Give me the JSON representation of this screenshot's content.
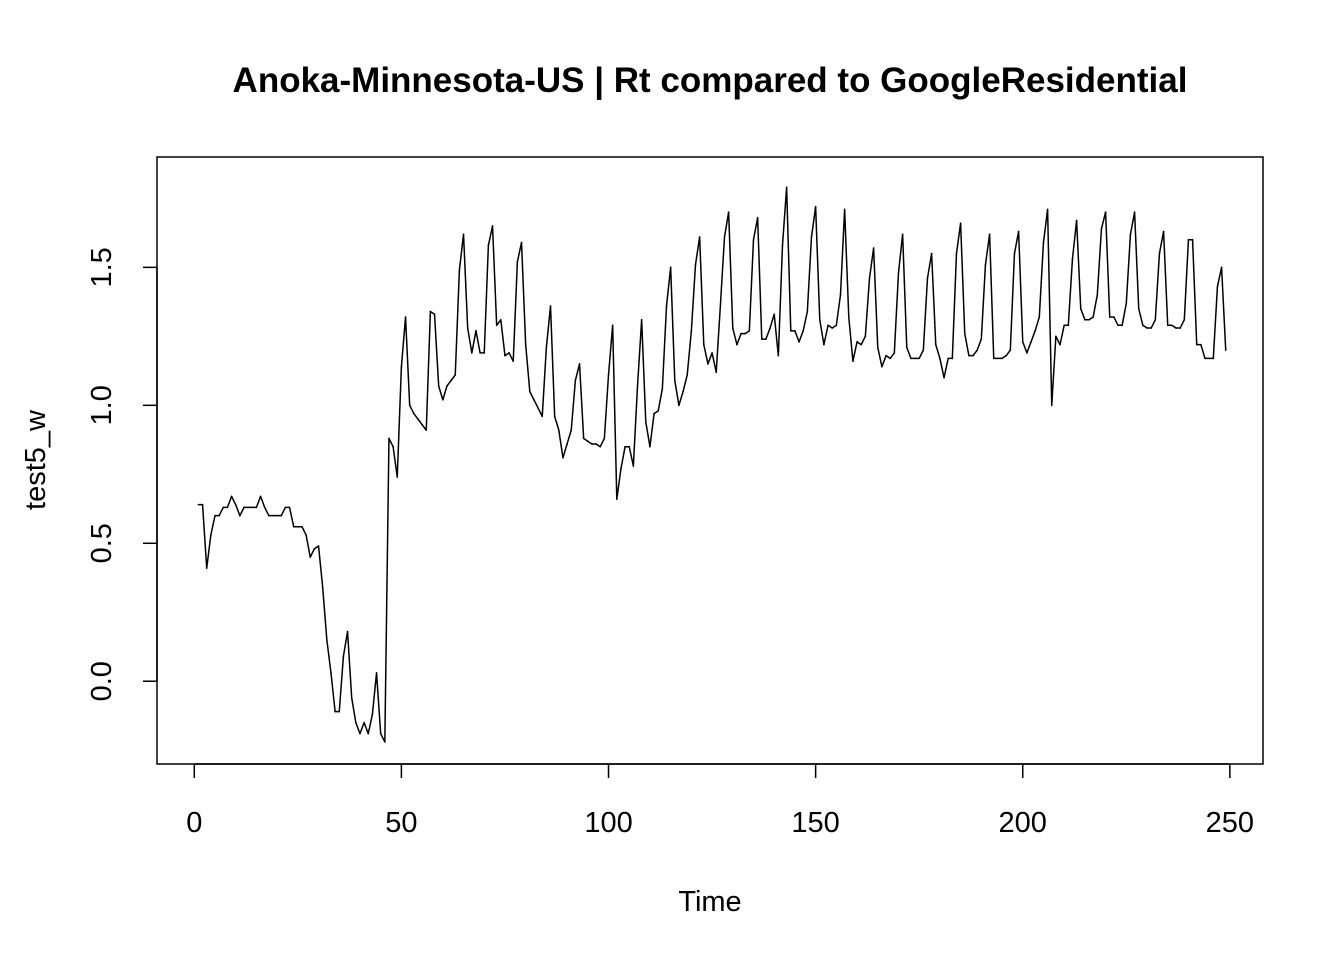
{
  "chart_data": {
    "type": "line",
    "title": "Anoka-Minnesota-US | Rt compared to GoogleResidential",
    "xlabel": "Time",
    "ylabel": "test5_w",
    "xlim": [
      -9,
      258
    ],
    "ylim": [
      -0.3,
      1.9
    ],
    "x_ticks": [
      0,
      50,
      100,
      150,
      200,
      250
    ],
    "y_ticks": [
      0.0,
      0.5,
      1.0,
      1.5
    ],
    "x_tick_labels": [
      "0",
      "50",
      "100",
      "150",
      "200",
      "250"
    ],
    "y_tick_labels": [
      "0.0",
      "0.5",
      "1.0",
      "1.5"
    ],
    "grid": false,
    "legend": "none",
    "line_color": "#000000",
    "series": [
      {
        "x_start": 1,
        "values": [
          0.64,
          0.64,
          0.41,
          0.53,
          0.6,
          0.6,
          0.63,
          0.63,
          0.67,
          0.64,
          0.6,
          0.63,
          0.63,
          0.63,
          0.63,
          0.67,
          0.63,
          0.6,
          0.6,
          0.6,
          0.6,
          0.63,
          0.63,
          0.56,
          0.56,
          0.56,
          0.53,
          0.45,
          0.48,
          0.49,
          0.34,
          0.15,
          0.03,
          -0.11,
          -0.11,
          0.09,
          0.18,
          -0.06,
          -0.15,
          -0.19,
          -0.15,
          -0.19,
          -0.12,
          0.03,
          -0.19,
          -0.22,
          0.88,
          0.85,
          0.74,
          1.14,
          1.32,
          1.0,
          0.97,
          0.95,
          0.93,
          0.91,
          1.34,
          1.33,
          1.07,
          1.02,
          1.07,
          1.09,
          1.11,
          1.49,
          1.62,
          1.28,
          1.19,
          1.27,
          1.19,
          1.19,
          1.58,
          1.65,
          1.29,
          1.31,
          1.18,
          1.19,
          1.16,
          1.52,
          1.59,
          1.22,
          1.05,
          1.02,
          0.99,
          0.96,
          1.21,
          1.36,
          0.96,
          0.91,
          0.81,
          0.86,
          0.91,
          1.09,
          1.15,
          0.88,
          0.87,
          0.86,
          0.86,
          0.85,
          0.88,
          1.11,
          1.29,
          0.66,
          0.77,
          0.85,
          0.85,
          0.78,
          1.07,
          1.31,
          0.94,
          0.85,
          0.97,
          0.98,
          1.06,
          1.36,
          1.5,
          1.09,
          1.0,
          1.05,
          1.11,
          1.27,
          1.51,
          1.61,
          1.22,
          1.15,
          1.19,
          1.12,
          1.36,
          1.61,
          1.7,
          1.28,
          1.22,
          1.26,
          1.26,
          1.27,
          1.6,
          1.68,
          1.24,
          1.24,
          1.28,
          1.33,
          1.18,
          1.58,
          1.79,
          1.27,
          1.27,
          1.23,
          1.27,
          1.34,
          1.61,
          1.72,
          1.31,
          1.22,
          1.29,
          1.28,
          1.29,
          1.4,
          1.71,
          1.32,
          1.16,
          1.23,
          1.22,
          1.25,
          1.46,
          1.57,
          1.21,
          1.14,
          1.18,
          1.17,
          1.19,
          1.48,
          1.62,
          1.21,
          1.17,
          1.17,
          1.17,
          1.2,
          1.46,
          1.55,
          1.22,
          1.17,
          1.1,
          1.17,
          1.17,
          1.55,
          1.66,
          1.26,
          1.18,
          1.18,
          1.2,
          1.24,
          1.51,
          1.62,
          1.17,
          1.17,
          1.17,
          1.18,
          1.2,
          1.55,
          1.63,
          1.23,
          1.19,
          1.23,
          1.27,
          1.32,
          1.59,
          1.71,
          1.0,
          1.25,
          1.22,
          1.29,
          1.29,
          1.53,
          1.67,
          1.35,
          1.31,
          1.31,
          1.32,
          1.4,
          1.64,
          1.7,
          1.32,
          1.32,
          1.29,
          1.29,
          1.37,
          1.62,
          1.7,
          1.35,
          1.29,
          1.28,
          1.28,
          1.31,
          1.55,
          1.63,
          1.29,
          1.29,
          1.28,
          1.28,
          1.31,
          1.6,
          1.6,
          1.22,
          1.22,
          1.17,
          1.17,
          1.17,
          1.43,
          1.5,
          1.2
        ]
      }
    ]
  }
}
